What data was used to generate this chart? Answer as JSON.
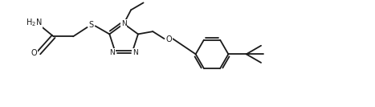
{
  "background_color": "#ffffff",
  "line_color": "#1a1a1a",
  "lw": 1.3,
  "fs": 7.0,
  "figsize": [
    4.67,
    1.33
  ],
  "dpi": 100,
  "xlim": [
    -0.5,
    10.5
  ],
  "ylim": [
    -0.2,
    3.0
  ]
}
